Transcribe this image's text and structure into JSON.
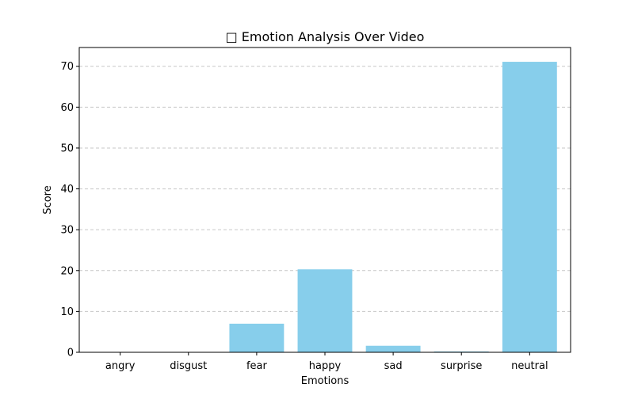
{
  "chart_data": {
    "type": "bar",
    "title": "□ Emotion Analysis Over Video",
    "xlabel": "Emotions",
    "ylabel": "Score",
    "categories": [
      "angry",
      "disgust",
      "fear",
      "happy",
      "sad",
      "surprise",
      "neutral"
    ],
    "values": [
      0.02,
      0.01,
      7.0,
      20.3,
      1.6,
      0.2,
      71.1
    ],
    "ylim": [
      0,
      74.6
    ],
    "yticks": [
      0,
      10,
      20,
      30,
      40,
      50,
      60,
      70
    ],
    "grid": "y-dashed",
    "bar_color": "#87ceeb",
    "grid_color": "#c7c7c7"
  }
}
